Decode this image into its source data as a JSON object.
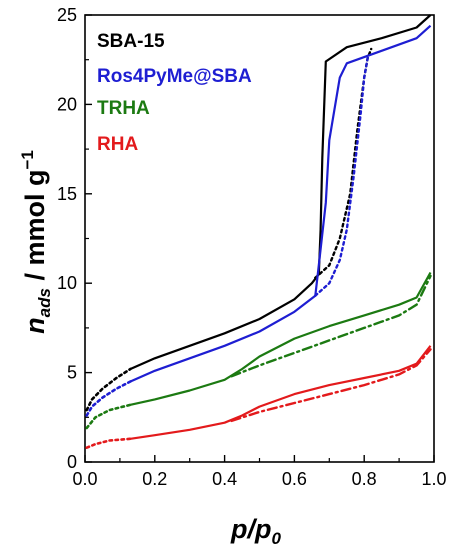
{
  "chart_data": {
    "type": "line",
    "xlim": [
      0.0,
      1.0
    ],
    "ylim": [
      0,
      25
    ],
    "x_ticks": [
      0.0,
      0.2,
      0.4,
      0.6,
      0.8,
      1.0
    ],
    "y_ticks": [
      0,
      5,
      10,
      15,
      20,
      25
    ],
    "x_tick_labels": [
      "0.0",
      "0.2",
      "0.4",
      "0.6",
      "0.8",
      "1.0"
    ],
    "y_tick_labels": [
      "0",
      "5",
      "10",
      "15",
      "20",
      "25"
    ],
    "x_label": {
      "base": "p/p",
      "sub": "0"
    },
    "y_label": {
      "pre": "n",
      "sub": "ads",
      "mid": " / mmol g",
      "sup": "−1"
    },
    "grid": false,
    "legend_position": "top-left",
    "series": [
      {
        "name": "SBA-15",
        "color": "#000000",
        "adsorption": [
          [
            0.005,
            2.9
          ],
          [
            0.02,
            3.5
          ],
          [
            0.05,
            4.1
          ],
          [
            0.09,
            4.7
          ],
          [
            0.13,
            5.2
          ]
        ],
        "branch": [
          [
            0.13,
            5.2
          ],
          [
            0.2,
            5.8
          ],
          [
            0.3,
            6.5
          ],
          [
            0.4,
            7.2
          ],
          [
            0.5,
            8.0
          ],
          [
            0.6,
            9.1
          ],
          [
            0.65,
            10.0
          ],
          [
            0.67,
            10.5
          ],
          [
            0.675,
            13.0
          ],
          [
            0.68,
            17.0
          ],
          [
            0.69,
            22.4
          ],
          [
            0.75,
            23.2
          ],
          [
            0.85,
            23.7
          ],
          [
            0.95,
            24.3
          ],
          [
            0.99,
            25.0
          ]
        ],
        "desorption": [
          [
            0.66,
            10.3
          ],
          [
            0.7,
            11.0
          ],
          [
            0.73,
            12.5
          ],
          [
            0.76,
            15.0
          ],
          [
            0.78,
            18.5
          ],
          [
            0.8,
            21.5
          ],
          [
            0.81,
            22.6
          ],
          [
            0.82,
            23.1
          ]
        ]
      },
      {
        "name": "Ros4PyMe@SBA",
        "color": "#1e1ed2",
        "adsorption": [
          [
            0.005,
            2.6
          ],
          [
            0.02,
            3.1
          ],
          [
            0.05,
            3.6
          ],
          [
            0.09,
            4.1
          ],
          [
            0.13,
            4.5
          ]
        ],
        "branch": [
          [
            0.13,
            4.5
          ],
          [
            0.2,
            5.1
          ],
          [
            0.3,
            5.8
          ],
          [
            0.4,
            6.5
          ],
          [
            0.5,
            7.3
          ],
          [
            0.6,
            8.4
          ],
          [
            0.66,
            9.3
          ],
          [
            0.67,
            11.0
          ],
          [
            0.69,
            14.5
          ],
          [
            0.7,
            18.0
          ],
          [
            0.73,
            21.5
          ],
          [
            0.75,
            22.3
          ],
          [
            0.85,
            23.0
          ],
          [
            0.95,
            23.7
          ],
          [
            0.99,
            24.4
          ]
        ],
        "desorption": [
          [
            0.66,
            9.3
          ],
          [
            0.7,
            10.0
          ],
          [
            0.73,
            11.3
          ],
          [
            0.75,
            13.0
          ],
          [
            0.77,
            16.0
          ],
          [
            0.79,
            19.5
          ],
          [
            0.8,
            21.5
          ],
          [
            0.81,
            22.6
          ]
        ]
      },
      {
        "name": "TRHA",
        "color": "#1c7a12",
        "adsorption": [
          [
            0.005,
            1.9
          ],
          [
            0.03,
            2.5
          ],
          [
            0.07,
            2.9
          ],
          [
            0.13,
            3.2
          ]
        ],
        "branch": [
          [
            0.13,
            3.2
          ],
          [
            0.2,
            3.5
          ],
          [
            0.3,
            4.0
          ],
          [
            0.4,
            4.6
          ],
          [
            0.45,
            5.2
          ],
          [
            0.5,
            5.9
          ],
          [
            0.6,
            6.9
          ],
          [
            0.7,
            7.6
          ],
          [
            0.8,
            8.2
          ],
          [
            0.9,
            8.8
          ],
          [
            0.95,
            9.2
          ],
          [
            0.99,
            10.6
          ]
        ],
        "desorption": [
          [
            0.42,
            4.8
          ],
          [
            0.5,
            5.4
          ],
          [
            0.6,
            6.1
          ],
          [
            0.7,
            6.8
          ],
          [
            0.8,
            7.5
          ],
          [
            0.9,
            8.2
          ],
          [
            0.95,
            8.8
          ],
          [
            0.99,
            10.4
          ]
        ]
      },
      {
        "name": "RHA",
        "color": "#e31a1c",
        "adsorption": [
          [
            0.005,
            0.8
          ],
          [
            0.03,
            1.0
          ],
          [
            0.07,
            1.2
          ],
          [
            0.13,
            1.3
          ]
        ],
        "branch": [
          [
            0.13,
            1.3
          ],
          [
            0.2,
            1.5
          ],
          [
            0.3,
            1.8
          ],
          [
            0.4,
            2.2
          ],
          [
            0.45,
            2.6
          ],
          [
            0.5,
            3.1
          ],
          [
            0.6,
            3.8
          ],
          [
            0.7,
            4.3
          ],
          [
            0.8,
            4.7
          ],
          [
            0.9,
            5.1
          ],
          [
            0.95,
            5.5
          ],
          [
            0.99,
            6.5
          ]
        ],
        "desorption": [
          [
            0.42,
            2.3
          ],
          [
            0.5,
            2.8
          ],
          [
            0.6,
            3.3
          ],
          [
            0.7,
            3.8
          ],
          [
            0.8,
            4.3
          ],
          [
            0.9,
            4.9
          ],
          [
            0.95,
            5.4
          ],
          [
            0.99,
            6.3
          ]
        ]
      }
    ]
  }
}
